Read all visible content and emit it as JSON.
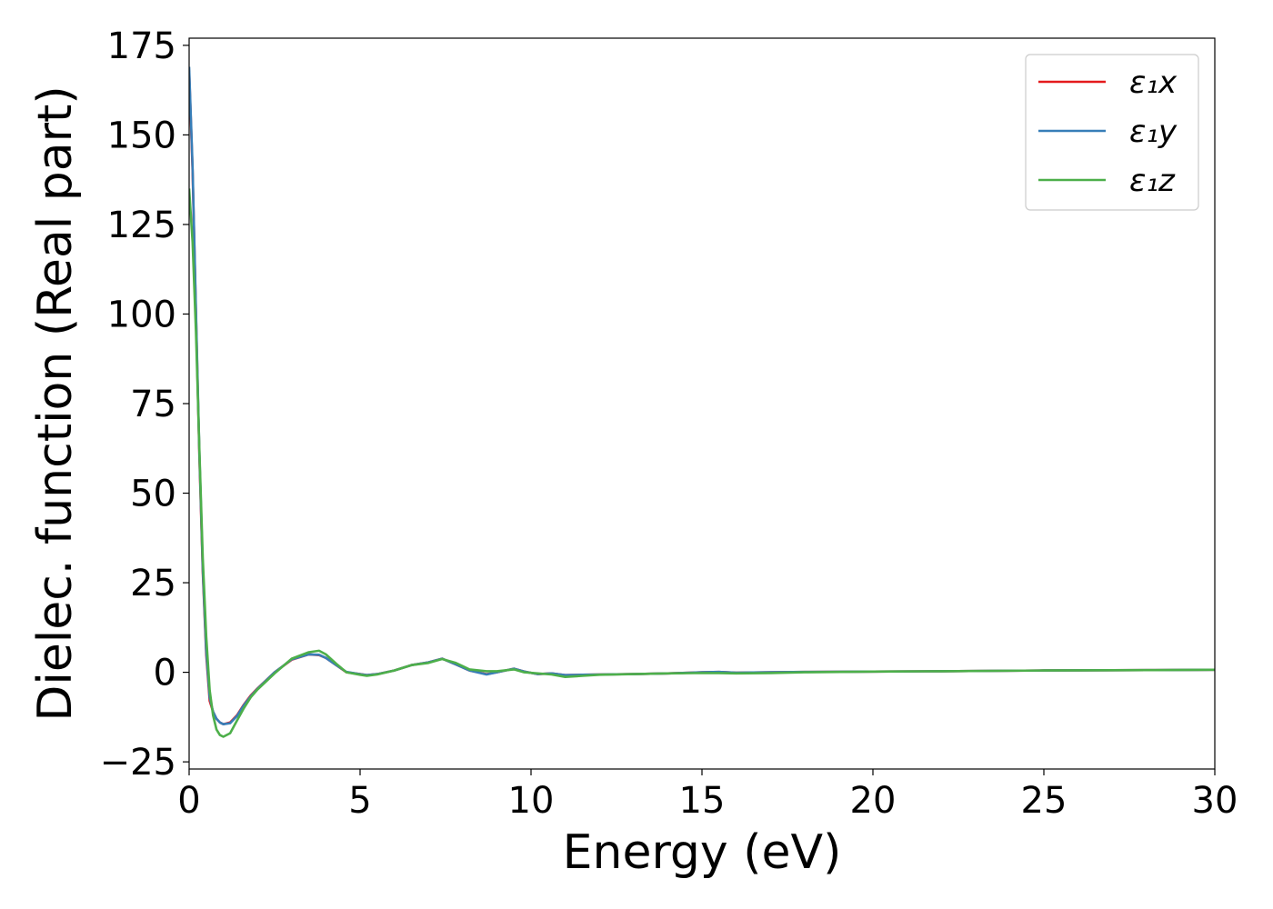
{
  "chart_data": {
    "type": "line",
    "xlabel": "Energy (eV)",
    "ylabel": "Dielec. function (Real part)",
    "xlim": [
      0,
      30
    ],
    "ylim": [
      -27,
      177
    ],
    "xticks": [
      0,
      5,
      10,
      15,
      20,
      25,
      30
    ],
    "xtick_labels": [
      "0",
      "5",
      "10",
      "15",
      "20",
      "25",
      "30"
    ],
    "yticks": [
      -25,
      0,
      25,
      50,
      75,
      100,
      125,
      150,
      175
    ],
    "ytick_labels": [
      "−25",
      "0",
      "25",
      "50",
      "75",
      "100",
      "125",
      "150",
      "175"
    ],
    "grid": false,
    "legend_position": "top-right",
    "series": [
      {
        "name": "ε₁x",
        "color": "#e41a1c",
        "x": [
          0,
          0.1,
          0.2,
          0.3,
          0.4,
          0.5,
          0.6,
          0.7,
          0.8,
          0.9,
          1.0,
          1.2,
          1.4,
          1.6,
          1.8,
          2.0,
          2.5,
          3.0,
          3.5,
          3.8,
          4.0,
          4.3,
          4.6,
          5.0,
          5.2,
          5.5,
          6.0,
          6.5,
          7.0,
          7.4,
          7.8,
          8.2,
          8.7,
          9.0,
          9.5,
          9.8,
          10.2,
          10.6,
          11.0,
          11.5,
          12,
          13,
          14,
          15,
          15.5,
          16,
          17,
          18,
          20,
          22,
          25,
          28,
          30
        ],
        "values": [
          168,
          140,
          100,
          60,
          28,
          5,
          -8,
          -11,
          -13,
          -14,
          -14.5,
          -14,
          -12,
          -9,
          -6.5,
          -4.5,
          0,
          3.5,
          5,
          4.8,
          4,
          2,
          0,
          -0.5,
          -0.8,
          -0.5,
          0.5,
          2,
          2.8,
          3.8,
          2.2,
          0.5,
          -0.5,
          0,
          1,
          0.2,
          -0.5,
          -0.3,
          -0.8,
          -0.7,
          -0.6,
          -0.5,
          -0.3,
          0,
          0.1,
          -0.1,
          0,
          0.1,
          0.2,
          0.3,
          0.5,
          0.6,
          0.7
        ]
      },
      {
        "name": "ε₁y",
        "color": "#377eb8",
        "x": [
          0,
          0.1,
          0.2,
          0.3,
          0.4,
          0.5,
          0.6,
          0.7,
          0.8,
          0.9,
          1.0,
          1.2,
          1.4,
          1.6,
          1.8,
          2.0,
          2.5,
          3.0,
          3.5,
          3.8,
          4.0,
          4.3,
          4.6,
          5.0,
          5.2,
          5.5,
          6.0,
          6.5,
          7.0,
          7.4,
          7.8,
          8.2,
          8.7,
          9.0,
          9.5,
          9.8,
          10.2,
          10.6,
          11.0,
          11.5,
          12,
          13,
          14,
          15,
          15.5,
          16,
          17,
          18,
          20,
          22,
          25,
          28,
          30
        ],
        "values": [
          169,
          141,
          101,
          61,
          29,
          6,
          -7,
          -11,
          -13,
          -14,
          -14.5,
          -14.2,
          -12.2,
          -9.2,
          -6.7,
          -4.6,
          0,
          3.6,
          5,
          4.9,
          4,
          2,
          0.1,
          -0.5,
          -0.8,
          -0.5,
          0.5,
          2,
          2.8,
          3.8,
          2.2,
          0.5,
          -0.6,
          0,
          1,
          0.2,
          -0.5,
          -0.3,
          -0.8,
          -0.7,
          -0.6,
          -0.5,
          -0.3,
          0,
          0.1,
          -0.1,
          0,
          0.1,
          0.2,
          0.3,
          0.5,
          0.6,
          0.7
        ]
      },
      {
        "name": "ε₁z",
        "color": "#4daf4a",
        "x": [
          0,
          0.1,
          0.2,
          0.3,
          0.4,
          0.5,
          0.6,
          0.7,
          0.8,
          0.9,
          1.0,
          1.2,
          1.4,
          1.6,
          1.8,
          2.0,
          2.5,
          3.0,
          3.5,
          3.8,
          4.0,
          4.3,
          4.6,
          5.0,
          5.2,
          5.5,
          6.0,
          6.5,
          7.0,
          7.4,
          7.8,
          8.2,
          8.7,
          9.0,
          9.5,
          9.8,
          10.2,
          10.6,
          11.0,
          11.5,
          12,
          13,
          14,
          15,
          15.5,
          16,
          17,
          18,
          20,
          22,
          25,
          28,
          30
        ],
        "values": [
          135,
          120,
          95,
          62,
          32,
          10,
          -5,
          -12,
          -16,
          -17.5,
          -18,
          -17,
          -13.5,
          -10,
          -7,
          -4.8,
          -0.3,
          3.8,
          5.6,
          6,
          5,
          2.4,
          0,
          -0.7,
          -1,
          -0.6,
          0.5,
          2,
          2.6,
          3.7,
          2.6,
          0.8,
          0.3,
          0.3,
          0.8,
          0,
          -0.3,
          -0.6,
          -1.3,
          -1,
          -0.7,
          -0.5,
          -0.3,
          -0.2,
          -0.2,
          -0.3,
          -0.2,
          0,
          0.2,
          0.3,
          0.5,
          0.6,
          0.7
        ]
      }
    ]
  }
}
